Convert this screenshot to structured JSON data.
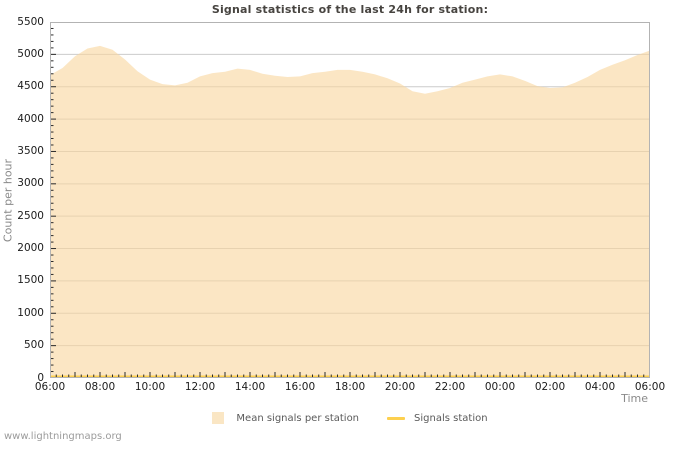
{
  "watermark": "www.lightningmaps.org",
  "legend": [
    {
      "label": "Mean signals per station",
      "type": "area",
      "color": "#FAE6C4"
    },
    {
      "label": "Signals station",
      "type": "line",
      "color": "#FDD04F"
    }
  ],
  "colors": {
    "area_fill_hex": "#FAE6C4",
    "area_fill_rgba": "rgba(248,214,160,0.62)",
    "line": "#FDD04F",
    "grid": "#CBCBCB",
    "border": "#B3B3B3",
    "tick": "#2A2A2A"
  },
  "chart_data": {
    "type": "area",
    "title": "Signal statistics of the last 24h for station:",
    "xlabel": "Time",
    "ylabel": "Count per hour",
    "ylim": [
      0,
      5500
    ],
    "y_tick_major_step": 500,
    "y_tick_minor_step": 100,
    "x_minor_tick_minutes": 15,
    "grid": true,
    "legend_position": "bottom",
    "x_tick_labels": [
      "06:00",
      "08:00",
      "10:00",
      "12:00",
      "14:00",
      "16:00",
      "18:00",
      "20:00",
      "22:00",
      "00:00",
      "02:00",
      "04:00",
      "06:00"
    ],
    "x": [
      "06:00",
      "06:30",
      "07:00",
      "07:30",
      "08:00",
      "08:30",
      "09:00",
      "09:30",
      "10:00",
      "10:30",
      "11:00",
      "11:30",
      "12:00",
      "12:30",
      "13:00",
      "13:30",
      "14:00",
      "14:30",
      "15:00",
      "15:30",
      "16:00",
      "16:30",
      "17:00",
      "17:30",
      "18:00",
      "18:30",
      "19:00",
      "19:30",
      "20:00",
      "20:30",
      "21:00",
      "21:30",
      "22:00",
      "22:30",
      "23:00",
      "23:30",
      "00:00",
      "00:30",
      "01:00",
      "01:30",
      "02:00",
      "02:30",
      "03:00",
      "03:30",
      "04:00",
      "04:30",
      "05:00",
      "05:30",
      "06:00"
    ],
    "series": [
      {
        "name": "Mean signals per station",
        "type": "area",
        "values": [
          4680,
          4790,
          4970,
          5090,
          5130,
          5070,
          4920,
          4740,
          4610,
          4540,
          4520,
          4560,
          4660,
          4710,
          4730,
          4780,
          4760,
          4700,
          4670,
          4650,
          4660,
          4710,
          4730,
          4760,
          4760,
          4730,
          4690,
          4630,
          4550,
          4430,
          4390,
          4430,
          4480,
          4560,
          4610,
          4660,
          4690,
          4660,
          4590,
          4510,
          4480,
          4490,
          4560,
          4650,
          4760,
          4840,
          4910,
          4990,
          5060
        ]
      },
      {
        "name": "Signals station",
        "type": "line",
        "values": [
          0,
          0,
          0,
          0,
          0,
          0,
          0,
          0,
          0,
          0,
          0,
          0,
          0,
          0,
          0,
          0,
          0,
          0,
          0,
          0,
          0,
          0,
          0,
          0,
          0,
          0,
          0,
          0,
          0,
          0,
          0,
          0,
          0,
          0,
          0,
          0,
          0,
          0,
          0,
          0,
          0,
          0,
          0,
          0,
          0,
          0,
          0,
          0,
          0
        ]
      }
    ]
  }
}
